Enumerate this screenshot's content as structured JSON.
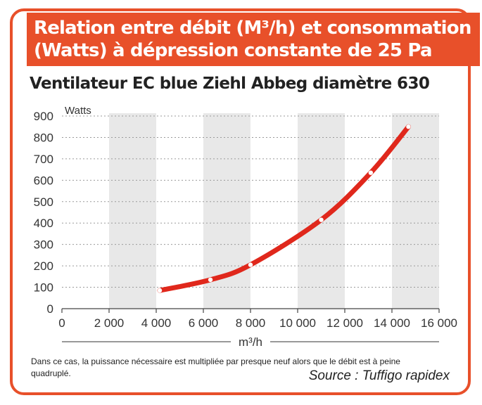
{
  "header": {
    "title_line1": "Relation entre débit (M³/h) et consommation",
    "title_line2": "(Watts) à dépression constante de 25 Pa",
    "subtitle": "Ventilateur EC blue Ziehl Abbeg diamètre 630"
  },
  "caption": "Dans ce cas, la puissance nécessaire est multipliée par presque neuf alors que le débit est à peine quadruplé.",
  "source": "Source : Tuffigo rapidex",
  "colors": {
    "accent": "#e8502a",
    "line": "#e0281c",
    "band": "#e8e8e8"
  },
  "chart_data": {
    "type": "line",
    "title": "Ventilateur EC blue Ziehl Abbeg diamètre 630",
    "xlabel": "m³/h",
    "ylabel": "Watts",
    "xlim": [
      0,
      16000
    ],
    "ylim": [
      0,
      900
    ],
    "x_ticks": [
      0,
      2000,
      4000,
      6000,
      8000,
      10000,
      12000,
      14000,
      16000
    ],
    "x_tick_labels": [
      "0",
      "2 000",
      "4 000",
      "6 000",
      "8 000",
      "10 000",
      "12 000",
      "14 000",
      "16 000"
    ],
    "y_ticks": [
      0,
      100,
      200,
      300,
      400,
      500,
      600,
      700,
      800,
      900
    ],
    "y_tick_labels": [
      "0",
      "100",
      "200",
      "300",
      "400",
      "500",
      "600",
      "700",
      "800",
      "900"
    ],
    "grid": "alternating vertical bands",
    "legend": "none",
    "series": [
      {
        "x": [
          4150,
          6300,
          8000,
          11000,
          13100,
          14700
        ],
        "y": [
          85,
          135,
          205,
          415,
          635,
          850
        ]
      }
    ]
  }
}
